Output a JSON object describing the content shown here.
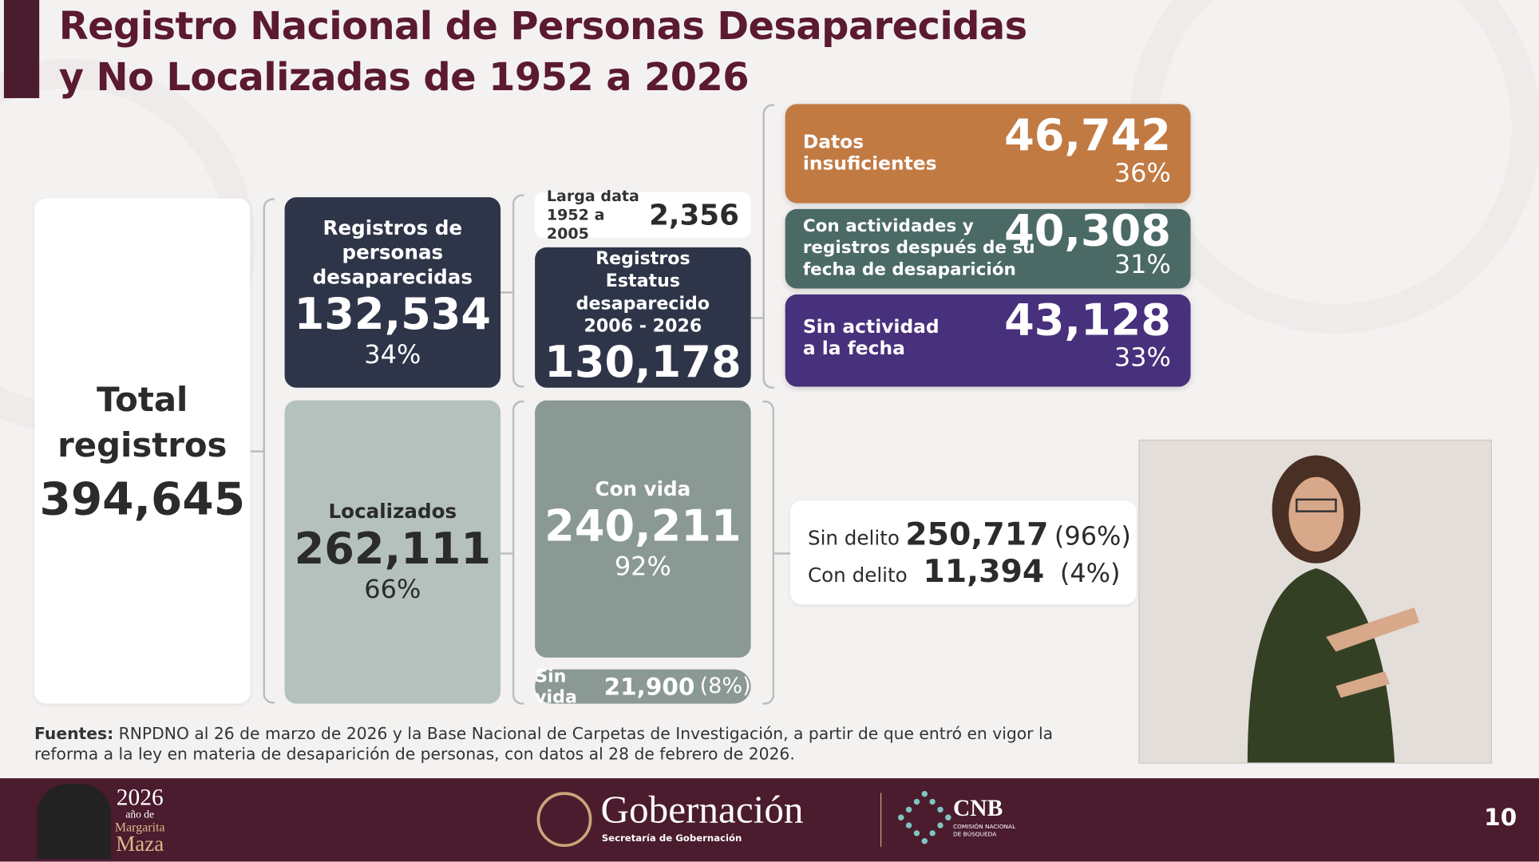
{
  "title": {
    "line1": "Registro Nacional de Personas Desaparecidas",
    "line2": "y No Localizadas de 1952 a 2026"
  },
  "total": {
    "label1": "Total",
    "label2": "registros",
    "value": "394,645"
  },
  "desaparecidas": {
    "label": "Registros de personas desaparecidas",
    "value": "132,534",
    "pct": "34%"
  },
  "localizados": {
    "label": "Localizados",
    "value": "262,111",
    "pct": "66%"
  },
  "larga_data": {
    "label1": "Larga data",
    "label2": "1952 a 2005",
    "value": "2,356"
  },
  "estatus": {
    "label": "Registros Estatus desaparecido 2006 - 2026",
    "value": "130,178"
  },
  "con_vida": {
    "label": "Con vida",
    "value": "240,211",
    "pct": "92%"
  },
  "sin_vida": {
    "label": "Sin vida",
    "value": "21,900",
    "pct": "(8%)"
  },
  "categories": [
    {
      "label": "Datos insuficientes",
      "value": "46,742",
      "pct": "36%",
      "color": "#c27a43"
    },
    {
      "label": "Con actividades y registros después de su fecha de desaparición",
      "value": "40,308",
      "pct": "31%",
      "color": "#4b6a66"
    },
    {
      "label": "Sin actividad a la fecha",
      "value": "43,128",
      "pct": "33%",
      "color": "#47307c"
    }
  ],
  "delito": {
    "sin_label": "Sin delito",
    "sin_value": "250,717",
    "sin_pct": "(96%)",
    "con_label": "Con delito",
    "con_value": "11,394",
    "con_pct": "(4%)"
  },
  "sources": {
    "bold": "Fuentes:",
    "text": " RNPDNO al 26 de marzo de 2026 y la Base Nacional de Carpetas de Investigación, a partir de que entró en vigor la reforma a la ley en materia de desaparición de personas, con datos al 28 de febrero de 2026."
  },
  "footer": {
    "year": "2026",
    "year_sub1": "año de",
    "year_sub2": "Margarita",
    "year_sub3": "Maza",
    "gob": "Gobernación",
    "gob_sub": "Secretaría de Gobernación",
    "cnb": "CNB",
    "cnb_sub": "COMISIÓN NACIONAL DE BÚSQUEDA",
    "page": "10"
  }
}
